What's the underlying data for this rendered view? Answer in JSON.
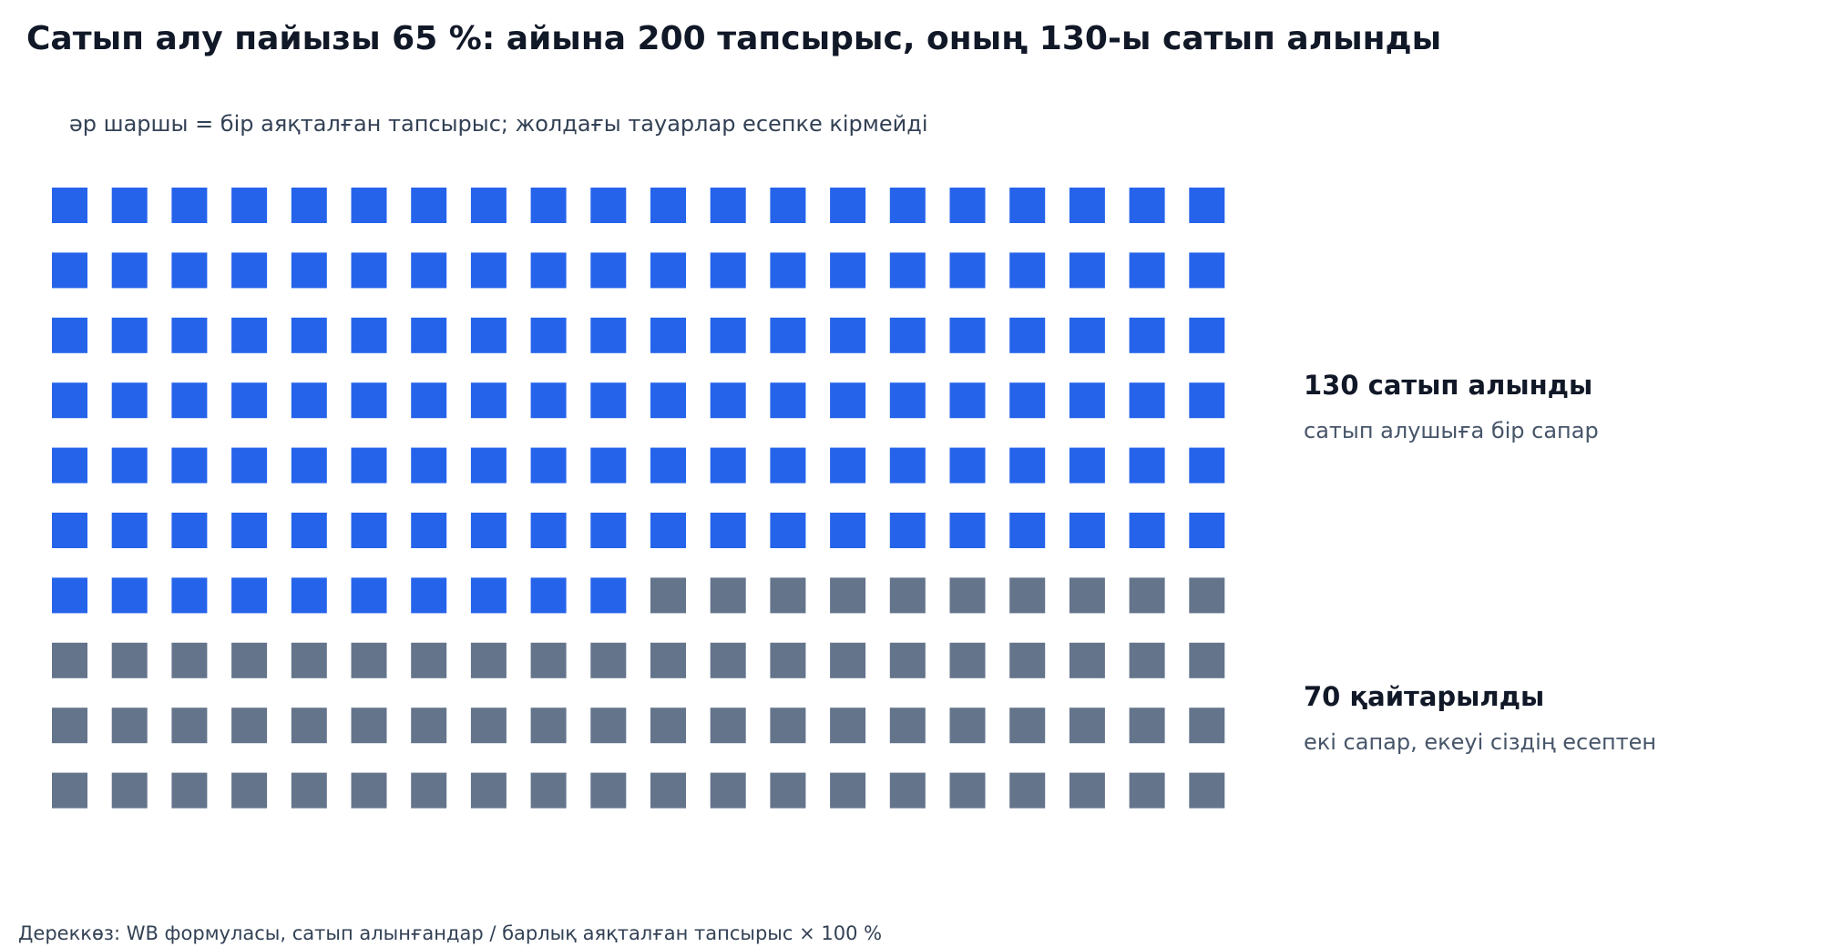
{
  "chart_data": {
    "type": "waffle",
    "title": "Сатып алу пайызы 65 %: айына 200 тапсырыс, оның 130-ы сатып алынды",
    "subtitle": "әр шаршы = бір аяқталған тапсырыс; жолдағы тауарлар есепке кірмейді",
    "total": 200,
    "rows": 10,
    "columns": 20,
    "series": [
      {
        "name": "сатып алынды",
        "value": 130,
        "color": "#2563eb",
        "label": "130 сатып алынды",
        "note": "сатып алушыға бір сапар"
      },
      {
        "name": "қайтарылды",
        "value": 70,
        "color": "#64748b",
        "label": "70 қайтарылды",
        "note": "екі сапар, екеуі сіздің есептен"
      }
    ],
    "source": "Дереккөз: WB формуласы, сатып алынғандар / барлық аяқталған тапсырыс × 100 %"
  }
}
